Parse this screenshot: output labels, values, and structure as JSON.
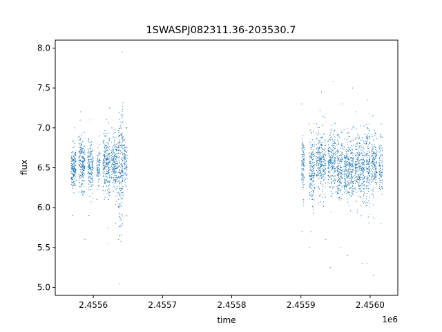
{
  "chart_data": {
    "type": "scatter",
    "title": "1SWASPJ082311.36-203530.7",
    "xlabel": "time",
    "ylabel": "flux",
    "x_offset_label": "1e6",
    "xlim": [
      2455545,
      2456040
    ],
    "ylim": [
      4.9,
      8.1
    ],
    "x_ticks": [
      2455600,
      2455700,
      2455800,
      2455900,
      2456000
    ],
    "x_tick_labels": [
      "2.4556",
      "2.4557",
      "2.4558",
      "2.4559",
      "2.4560"
    ],
    "y_ticks": [
      5.0,
      5.5,
      6.0,
      6.5,
      7.0,
      7.5,
      8.0
    ],
    "y_tick_labels": [
      "5.0",
      "5.5",
      "6.0",
      "6.5",
      "7.0",
      "7.5",
      "8.0"
    ],
    "grid": false,
    "marker_color": "#1f77b4",
    "series": [
      {
        "clusters": [
          {
            "x_start": 2455568,
            "x_end": 2455575,
            "n": 170,
            "median": 6.5,
            "sd": 0.13,
            "ymin": 5.9,
            "ymax": 7.0
          },
          {
            "x_start": 2455579,
            "x_end": 2455588,
            "n": 200,
            "median": 6.55,
            "sd": 0.17,
            "ymin": 5.6,
            "ymax": 7.2
          },
          {
            "x_start": 2455592,
            "x_end": 2455600,
            "n": 160,
            "median": 6.5,
            "sd": 0.15,
            "ymin": 5.9,
            "ymax": 7.1
          },
          {
            "x_start": 2455605,
            "x_end": 2455610,
            "n": 80,
            "median": 6.5,
            "sd": 0.12,
            "ymin": 6.1,
            "ymax": 6.9
          },
          {
            "x_start": 2455614,
            "x_end": 2455624,
            "n": 230,
            "median": 6.55,
            "sd": 0.2,
            "ymin": 5.55,
            "ymax": 7.25
          },
          {
            "x_start": 2455626,
            "x_end": 2455635,
            "n": 190,
            "median": 6.55,
            "sd": 0.18,
            "ymin": 5.8,
            "ymax": 7.0
          },
          {
            "x_start": 2455636,
            "x_end": 2455643,
            "n": 200,
            "median": 6.5,
            "sd": 0.38,
            "ymin": 5.05,
            "ymax": 7.95
          },
          {
            "x_start": 2455644,
            "x_end": 2455649,
            "n": 90,
            "median": 6.6,
            "sd": 0.15,
            "ymin": 5.9,
            "ymax": 7.0
          },
          {
            "x_start": 2455901,
            "x_end": 2455905,
            "n": 100,
            "median": 6.5,
            "sd": 0.18,
            "ymin": 5.7,
            "ymax": 7.3
          },
          {
            "x_start": 2455912,
            "x_end": 2455920,
            "n": 170,
            "median": 6.45,
            "sd": 0.2,
            "ymin": 5.5,
            "ymax": 7.05
          },
          {
            "x_start": 2455922,
            "x_end": 2455936,
            "n": 260,
            "median": 6.55,
            "sd": 0.2,
            "ymin": 5.6,
            "ymax": 7.45
          },
          {
            "x_start": 2455939,
            "x_end": 2455950,
            "n": 220,
            "median": 6.55,
            "sd": 0.2,
            "ymin": 5.25,
            "ymax": 7.58
          },
          {
            "x_start": 2455952,
            "x_end": 2455960,
            "n": 170,
            "median": 6.5,
            "sd": 0.2,
            "ymin": 5.5,
            "ymax": 7.3
          },
          {
            "x_start": 2455962,
            "x_end": 2455976,
            "n": 300,
            "median": 6.5,
            "sd": 0.2,
            "ymin": 5.4,
            "ymax": 7.5
          },
          {
            "x_start": 2455978,
            "x_end": 2455992,
            "n": 280,
            "median": 6.5,
            "sd": 0.2,
            "ymin": 5.3,
            "ymax": 7.2
          },
          {
            "x_start": 2455994,
            "x_end": 2456000,
            "n": 150,
            "median": 6.55,
            "sd": 0.25,
            "ymin": 5.3,
            "ymax": 7.35
          },
          {
            "x_start": 2456002,
            "x_end": 2456010,
            "n": 160,
            "median": 6.55,
            "sd": 0.2,
            "ymin": 5.15,
            "ymax": 7.15
          },
          {
            "x_start": 2456013,
            "x_end": 2456018,
            "n": 90,
            "median": 6.5,
            "sd": 0.18,
            "ymin": 5.8,
            "ymax": 7.05
          }
        ]
      }
    ]
  }
}
